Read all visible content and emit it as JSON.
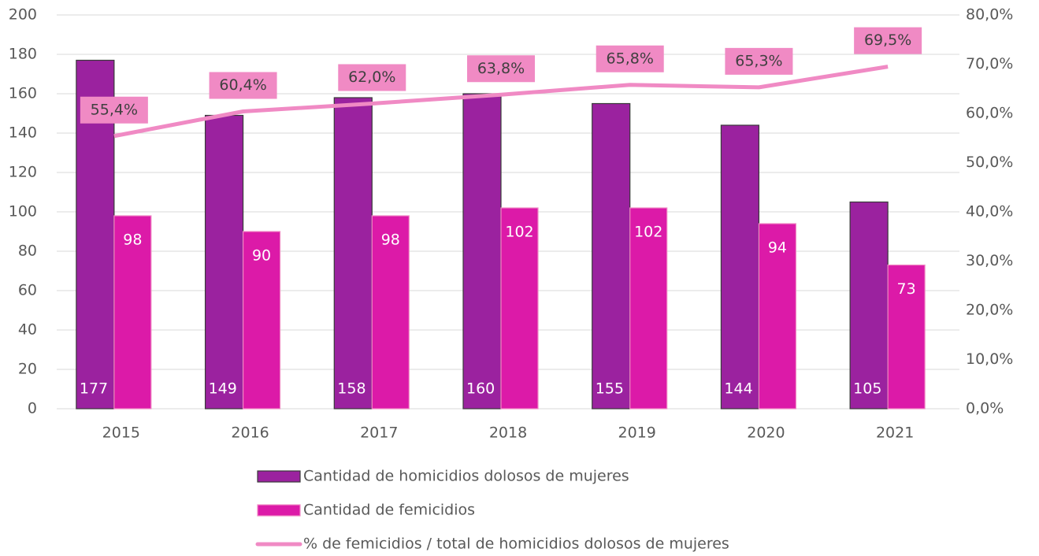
{
  "chart_data": {
    "type": "bar",
    "categories": [
      "2015",
      "2016",
      "2017",
      "2018",
      "2019",
      "2020",
      "2021"
    ],
    "series": [
      {
        "name": "Cantidad de homicidios dolosos de mujeres",
        "color": "#9b229f",
        "values": [
          177,
          149,
          158,
          160,
          155,
          144,
          105
        ]
      },
      {
        "name": "Cantidad de femicidios",
        "color": "#dc1aa8",
        "values": [
          98,
          90,
          98,
          102,
          102,
          94,
          73
        ]
      },
      {
        "name": "% de femicidios / total de homicidios dolosos de mujeres",
        "color": "#f08ac4",
        "axis": "y2",
        "type": "line",
        "values": [
          55.4,
          60.4,
          62.0,
          63.8,
          65.8,
          65.3,
          69.5
        ],
        "value_labels": [
          "55,4%",
          "60,4%",
          "62,0%",
          "63,8%",
          "65,8%",
          "65,3%",
          "69,5%"
        ]
      }
    ],
    "ylim": [
      0,
      200
    ],
    "yticks": [
      0,
      20,
      40,
      60,
      80,
      100,
      120,
      140,
      160,
      180,
      200
    ],
    "y2lim": [
      0,
      80
    ],
    "y2ticks": [
      {
        "value": 0,
        "label": "0,0%"
      },
      {
        "value": 10,
        "label": "10,0%"
      },
      {
        "value": 20,
        "label": "20,0%"
      },
      {
        "value": 30,
        "label": "30,0%"
      },
      {
        "value": 40,
        "label": "40,0%"
      },
      {
        "value": 50,
        "label": "50,0%"
      },
      {
        "value": 60,
        "label": "60,0%"
      },
      {
        "value": 70,
        "label": "70,0%"
      },
      {
        "value": 80,
        "label": "80,0%"
      }
    ],
    "grid": true,
    "legend": "bottom"
  }
}
